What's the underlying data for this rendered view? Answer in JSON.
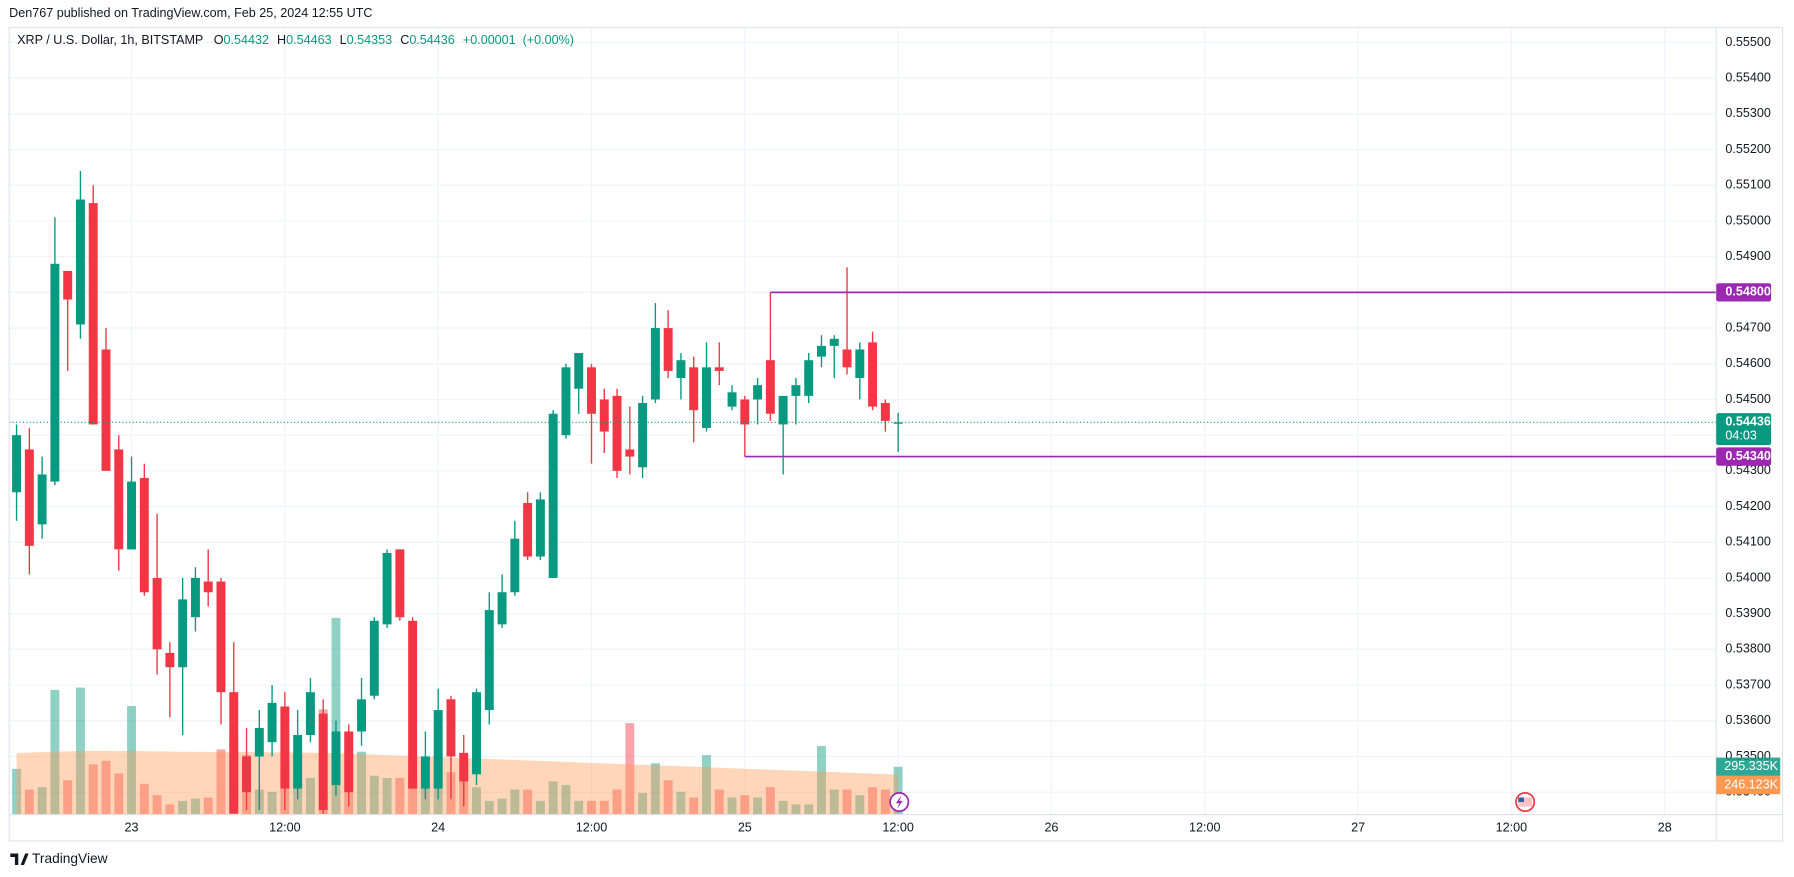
{
  "header": {
    "publisher": "Den767 published on TradingView.com, Feb 25, 2024 12:55 UTC"
  },
  "footer": {
    "brand": "TradingView"
  },
  "chart_data": {
    "type": "candlestick",
    "title": "XRP / U.S. Dollar, 1h, BITSTAMP",
    "legend": {
      "o_label": "O",
      "h_label": "H",
      "l_label": "L",
      "c_label": "C",
      "change": "+0.00001",
      "change_pct": "(+0.00%)"
    },
    "x": [
      -9,
      -8,
      -7,
      -6,
      -5,
      -4,
      -3,
      -2,
      -1,
      0,
      1,
      2,
      3,
      4,
      5,
      6,
      7,
      8,
      9,
      10,
      11,
      12,
      13,
      14,
      15,
      16,
      17,
      18,
      19,
      20,
      21,
      22,
      23,
      24,
      25,
      26,
      27,
      28,
      29,
      30,
      31,
      32,
      33,
      34,
      35,
      36,
      37,
      38,
      39,
      40,
      41,
      42,
      43,
      44,
      45,
      46,
      47,
      48,
      49,
      50,
      51,
      52,
      53,
      54,
      55,
      56,
      57,
      58,
      59,
      60
    ],
    "open": [
      0.5424,
      0.5436,
      0.5415,
      0.5427,
      0.5486,
      0.5471,
      0.5505,
      0.5464,
      0.5436,
      0.5408,
      0.5428,
      0.54,
      0.5379,
      0.5375,
      0.5389,
      0.5399,
      0.5399,
      0.5368,
      0.535,
      0.535,
      0.5354,
      0.5364,
      0.5341,
      0.5356,
      0.5362,
      0.5342,
      0.5357,
      0.5357,
      0.5367,
      0.5387,
      0.5408,
      0.5388,
      0.5341,
      0.5341,
      0.5366,
      0.5351,
      0.5345,
      0.5363,
      0.5387,
      0.5396,
      0.5421,
      0.5406,
      0.54,
      0.544,
      0.5453,
      0.5459,
      0.545,
      0.5451,
      0.5436,
      0.5431,
      0.545,
      0.547,
      0.5456,
      0.5459,
      0.5442,
      0.5459,
      0.5448,
      0.545,
      0.545,
      0.5461,
      0.5443,
      0.5451,
      0.5451,
      0.5462,
      0.5465,
      0.5464,
      0.5456,
      0.5466,
      0.5449,
      0.54432
    ],
    "high": [
      0.5443,
      0.5442,
      0.5434,
      0.5501,
      0.5486,
      0.5514,
      0.551,
      0.547,
      0.544,
      0.5434,
      0.5432,
      0.5418,
      0.5382,
      0.54,
      0.5403,
      0.5408,
      0.54,
      0.5382,
      0.5358,
      0.5363,
      0.537,
      0.5368,
      0.5363,
      0.5372,
      0.5366,
      0.536,
      0.5359,
      0.5372,
      0.5389,
      0.5408,
      0.5408,
      0.5389,
      0.5357,
      0.5369,
      0.5367,
      0.5356,
      0.5369,
      0.5396,
      0.5401,
      0.5416,
      0.5424,
      0.5424,
      0.5447,
      0.546,
      0.5463,
      0.546,
      0.5453,
      0.5453,
      0.5448,
      0.5451,
      0.5477,
      0.5475,
      0.5463,
      0.5462,
      0.5466,
      0.5466,
      0.5454,
      0.5451,
      0.5456,
      0.548,
      0.5451,
      0.5456,
      0.5463,
      0.5468,
      0.5468,
      0.5487,
      0.5466,
      0.5469,
      0.545,
      0.54463
    ],
    "low": [
      0.5416,
      0.5401,
      0.5411,
      0.5426,
      0.5458,
      0.5467,
      0.5443,
      0.543,
      0.5402,
      0.5408,
      0.5395,
      0.5373,
      0.5361,
      0.5356,
      0.5385,
      0.5392,
      0.5359,
      0.5334,
      0.5335,
      0.5335,
      0.535,
      0.5335,
      0.5338,
      0.5354,
      0.5334,
      0.5339,
      0.5336,
      0.5353,
      0.5366,
      0.5386,
      0.5388,
      0.5341,
      0.5338,
      0.5338,
      0.5338,
      0.5336,
      0.5342,
      0.5359,
      0.5386,
      0.5395,
      0.5405,
      0.5405,
      0.54,
      0.5439,
      0.5446,
      0.5432,
      0.5435,
      0.5428,
      0.5429,
      0.5428,
      0.5449,
      0.5456,
      0.545,
      0.5438,
      0.5441,
      0.5454,
      0.5447,
      0.5434,
      0.5443,
      0.5444,
      0.5429,
      0.5443,
      0.5449,
      0.5459,
      0.5456,
      0.5457,
      0.545,
      0.5447,
      0.5441,
      0.54353
    ],
    "close": [
      0.544,
      0.5409,
      0.5429,
      0.5488,
      0.5478,
      0.5506,
      0.5443,
      0.543,
      0.5408,
      0.5427,
      0.5396,
      0.538,
      0.5375,
      0.5394,
      0.54,
      0.5396,
      0.5368,
      0.5334,
      0.534,
      0.5358,
      0.5365,
      0.5341,
      0.5356,
      0.5368,
      0.5335,
      0.5357,
      0.534,
      0.5366,
      0.5388,
      0.5407,
      0.5389,
      0.5341,
      0.535,
      0.5363,
      0.535,
      0.5343,
      0.5368,
      0.5391,
      0.5396,
      0.5411,
      0.5406,
      0.5422,
      0.5446,
      0.5459,
      0.5463,
      0.5446,
      0.5441,
      0.543,
      0.5434,
      0.5449,
      0.547,
      0.5458,
      0.5461,
      0.5447,
      0.5459,
      0.5458,
      0.5452,
      0.5443,
      0.5454,
      0.5446,
      0.5451,
      0.5454,
      0.5461,
      0.5465,
      0.5467,
      0.5459,
      0.5464,
      0.5448,
      0.5444,
      0.54436
    ],
    "up_color": "#089981",
    "down_color": "#f23645",
    "volume": [
      282000,
      155000,
      169000,
      769000,
      212000,
      783000,
      310000,
      332000,
      254000,
      670000,
      190000,
      120000,
      63000,
      85000,
      99000,
      106000,
      402000,
      473000,
      367000,
      155000,
      141000,
      296000,
      205000,
      226000,
      649000,
      1213000,
      508000,
      388000,
      240000,
      226000,
      226000,
      212000,
      169000,
      367000,
      261000,
      310000,
      169000,
      85000,
      99000,
      155000,
      155000,
      85000,
      205000,
      183000,
      85000,
      85000,
      85000,
      155000,
      564000,
      134000,
      317000,
      212000,
      141000,
      106000,
      367000,
      155000,
      106000,
      120000,
      106000,
      169000,
      85000,
      63000,
      63000,
      423000,
      155000,
      155000,
      120000,
      169000,
      155000,
      295335
    ],
    "volume_ma": [
      380000,
      383000,
      386000,
      388000,
      390000,
      392000,
      393000,
      393000,
      392000,
      392000,
      391000,
      390000,
      389000,
      388000,
      387000,
      387000,
      386000,
      386000,
      386000,
      385000,
      384000,
      384000,
      383000,
      382000,
      381000,
      380000,
      376000,
      373000,
      370000,
      367000,
      364000,
      361000,
      358000,
      355000,
      352000,
      349000,
      346000,
      343000,
      340000,
      337000,
      334000,
      331000,
      328000,
      325000,
      322000,
      319000,
      316000,
      313000,
      310000,
      307000,
      304000,
      301000,
      298000,
      295000,
      292000,
      289000,
      286000,
      283000,
      280000,
      277000,
      274000,
      271000,
      268000,
      265000,
      262000,
      259000,
      256000,
      253000,
      250000,
      246123
    ],
    "volume_ma_color": "#ff9850",
    "volume_ylim": [
      0,
      790000
    ],
    "volume_last_label": "295.335K",
    "volume_ma_last_label": "246.123K",
    "xlim": [
      -9.58,
      124.03
    ],
    "xticks": [
      {
        "value": 0,
        "label": "23"
      },
      {
        "value": 12,
        "label": "12:00"
      },
      {
        "value": 24,
        "label": "24"
      },
      {
        "value": 36,
        "label": "12:00"
      },
      {
        "value": 48,
        "label": "25"
      },
      {
        "value": 60,
        "label": "12:00"
      },
      {
        "value": 72,
        "label": "26"
      },
      {
        "value": 84,
        "label": "12:00"
      },
      {
        "value": 96,
        "label": "27"
      },
      {
        "value": 108,
        "label": "12:00"
      },
      {
        "value": 120,
        "label": "28"
      }
    ],
    "ylim": [
      0.53337,
      0.55542
    ],
    "yticks": [
      {
        "value": 0.555,
        "label": "0.55500"
      },
      {
        "value": 0.554,
        "label": "0.55400"
      },
      {
        "value": 0.553,
        "label": "0.55300"
      },
      {
        "value": 0.552,
        "label": "0.55200"
      },
      {
        "value": 0.551,
        "label": "0.55100"
      },
      {
        "value": 0.55,
        "label": "0.55000"
      },
      {
        "value": 0.549,
        "label": "0.54900"
      },
      {
        "value": 0.548,
        "label": "0.54800"
      },
      {
        "value": 0.547,
        "label": "0.54700"
      },
      {
        "value": 0.546,
        "label": "0.54600"
      },
      {
        "value": 0.545,
        "label": "0.54500"
      },
      {
        "value": 0.544,
        "label": "0.54400"
      },
      {
        "value": 0.543,
        "label": "0.54300"
      },
      {
        "value": 0.542,
        "label": "0.54200"
      },
      {
        "value": 0.541,
        "label": "0.54100"
      },
      {
        "value": 0.54,
        "label": "0.54000"
      },
      {
        "value": 0.539,
        "label": "0.53900"
      },
      {
        "value": 0.538,
        "label": "0.53800"
      },
      {
        "value": 0.537,
        "label": "0.53700"
      },
      {
        "value": 0.536,
        "label": "0.53600"
      },
      {
        "value": 0.535,
        "label": "0.53500"
      },
      {
        "value": 0.534,
        "label": "0.53400"
      }
    ],
    "grid": true,
    "countdown": "04:03",
    "levels": [
      {
        "value": 0.548,
        "label": "0.54800",
        "x_start": 50,
        "color": "#9c27b0"
      },
      {
        "value": 0.5434,
        "label": "0.54340",
        "x_start": 48,
        "color": "#9c27b0"
      }
    ]
  }
}
